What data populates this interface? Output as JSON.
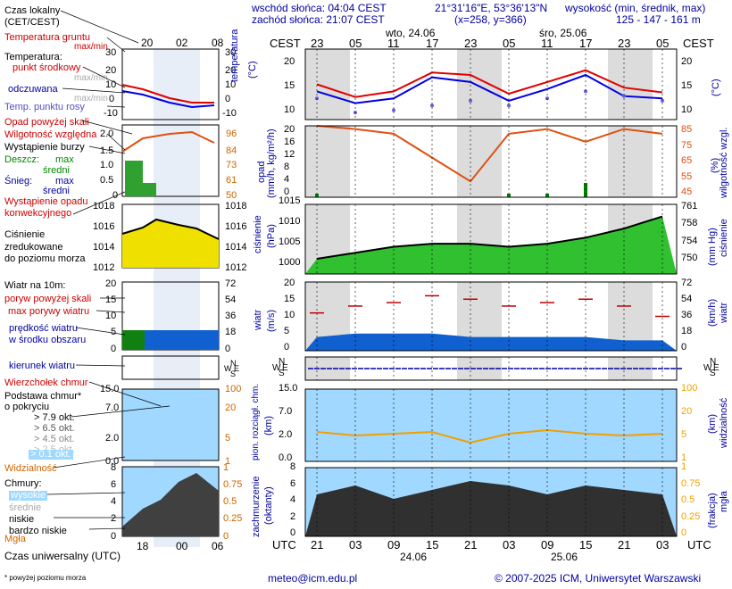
{
  "header": {
    "sunrise": "wschód słońca: 04:04 CEST",
    "sunset": "zachód słońca: 21:07 CEST",
    "coords": "21°31'16\"E, 53°36'13\"N",
    "grid": "(x=258, y=366)",
    "elev_title": "wysokość (min, średnik, max)",
    "elev_values": "125 - 147 - 161 m"
  },
  "time": {
    "cest_label": "CEST",
    "utc_label": "UTC",
    "top_hours": [
      "23",
      "05",
      "11",
      "17",
      "23",
      "05",
      "11",
      "17",
      "23",
      "05"
    ],
    "bottom_hours": [
      "21",
      "03",
      "09",
      "15",
      "21",
      "03",
      "09",
      "15",
      "21",
      "03"
    ],
    "dates_top": [
      "wto, 24.06",
      "śro, 25.06"
    ],
    "dates_bottom": [
      "24.06",
      "25.06"
    ],
    "legend_top_hours": [
      "20",
      "02",
      "08"
    ],
    "legend_bottom_hours": [
      "18",
      "00",
      "06"
    ]
  },
  "legend": {
    "czas_lokalny": "Czas lokalny",
    "czas_lokalny2": "(CET/CEST)",
    "temp_gruntu": "Temperatura gruntu",
    "max_min": "max/min",
    "temperatura": "Temperatura:",
    "punkt_srodkowy": "punkt środkowy",
    "max_min2": "max/min",
    "odczuwana": "odczuwana",
    "max_min3": "max/min",
    "punkt_rosy": "Temp. punktu rosy",
    "opad_powyzej": "Opad powyżej skali",
    "wilgotnosc": "Wilgotność względna",
    "burza": "Wystąpienie burzy",
    "deszcz": "Deszcz:",
    "max": "max",
    "sredni": "średni",
    "snieg": "Śnieg:",
    "wystapienie_opadu": "Wystąpienie opadu",
    "konwekcyjnego": "konwekcyjnego",
    "cisnienie": "Ciśnienie",
    "zredukowane": "zredukowane",
    "do_poziomu": "do poziomu morza",
    "wiatr10": "Wiatr na 10m:",
    "poryw_powyzej": "poryw powyżej skali",
    "max_porywy": "max porywy wiatru",
    "predkosc": "prędkość wiatru",
    "w_srodku": "w środku obszaru",
    "kierunek": "kierunek wiatru",
    "wierzcholek": "Wierzchołek chmur",
    "podstawa": "Podstawa chmur*",
    "o_pokryciu": "o pokryciu",
    "okt79": "> 7.9 okt.",
    "okt65": "> 6.5 okt.",
    "okt45": "> 4.5 okt.",
    "okt25": "> 2.5 okt.",
    "okt01": "> 0.1 okt.",
    "widzialnosc": "Widzialność",
    "chmury": "Chmury:",
    "wysokie": "wysokie",
    "srednie": "średnie",
    "niskie": "niskie",
    "bardzo_niskie": "bardzo niskie",
    "mgla": "Mgła",
    "czas_uniw": "Czas uniwersalny (UTC)",
    "footnote": "* powyżej poziomu morza"
  },
  "axes": {
    "temperature": {
      "label": "temperatura",
      "unit": "(°C)",
      "ticks": [
        "20",
        "15",
        "10"
      ]
    },
    "precip": {
      "label": "opad",
      "unit": "(mm/h, kg/m²/h)",
      "ticks": [
        "20",
        "16",
        "12",
        "8",
        "4",
        "0"
      ],
      "right_label": "wilgotność wzgl.",
      "right_unit": "(%)",
      "right_ticks": [
        "85",
        "75",
        "65",
        "55",
        "45"
      ]
    },
    "pressure": {
      "label": "ciśnienie",
      "unit": "(hPa)",
      "ticks": [
        "1015",
        "1010",
        "1005",
        "1000"
      ],
      "right_label": "ciśnienie",
      "right_unit": "(mm Hg)",
      "right_ticks": [
        "761",
        "758",
        "754",
        "750"
      ]
    },
    "wind": {
      "label": "wiatr",
      "unit": "(m/s)",
      "ticks": [
        "20",
        "15",
        "10",
        "5",
        "0"
      ],
      "right_label": "wiatr",
      "right_unit": "(km/h)",
      "right_ticks": [
        "72",
        "54",
        "36",
        "18",
        "0"
      ]
    },
    "dir": {
      "labels": [
        "N",
        "W",
        "E",
        "S"
      ]
    },
    "cloud": {
      "label": "pion. rozciągł. chm.",
      "unit": "(km)",
      "ticks": [
        "15.0",
        "7.0",
        "2.0",
        "0.0"
      ],
      "right_label": "widzialność",
      "right_unit": "(km)",
      "right_ticks": [
        "100",
        "20",
        "5",
        "1"
      ]
    },
    "cover": {
      "label": "zachmurzenie",
      "unit": "(oktanty)",
      "ticks": [
        "8",
        "6",
        "4",
        "2",
        "0"
      ],
      "right_label": "mgła",
      "right_unit": "(frakcja)",
      "right_ticks": [
        "1",
        "0.75",
        "0.5",
        "0.25",
        "0"
      ]
    }
  },
  "legend_axes": {
    "temp_left": [
      "30",
      "20",
      "10",
      "0",
      "-10"
    ],
    "temp_right": [
      "30",
      "20",
      "10",
      "0",
      "-10"
    ],
    "prec_left": [
      "2.0",
      "1.5",
      "1.0",
      "0.5",
      "0"
    ],
    "prec_right": [
      "96",
      "84",
      "73",
      "61",
      "50"
    ],
    "pres_left": [
      "1018",
      "1016",
      "1014",
      "1012"
    ],
    "pres_right": [
      "1018",
      "1016",
      "1014",
      "1012"
    ],
    "wind_left": [
      "20",
      "15",
      "10",
      "5",
      "0"
    ],
    "wind_right": [
      "72",
      "54",
      "36",
      "18",
      "0"
    ],
    "cloud_left": [
      "15.0",
      "7.0",
      "2.0",
      "0.0"
    ],
    "cloud_right": [
      "100",
      "20",
      "5",
      "1"
    ],
    "cover_left": [
      "8",
      "6",
      "4",
      "2",
      "0"
    ],
    "cover_right": [
      "1",
      "0.75",
      "0.5",
      "0.25",
      "0"
    ],
    "dir_labels": [
      "N",
      "W",
      "E",
      "S"
    ]
  },
  "footer": {
    "email": "meteo@icm.edu.pl",
    "copyright": "© 2007-2025 ICM, Uniwersytet Warszawski"
  },
  "colors": {
    "temp": "#e00000",
    "feel": "#0000e0",
    "dew": "#6060e0",
    "rh": "#e05010",
    "rain": "#008000",
    "pressure_fill": "#30c030",
    "gust": "#c00000",
    "wind_fill": "#1060d0",
    "sky": "#a0d8ff",
    "night": "#dcdcdc",
    "vis": "#f0a000"
  },
  "chart_data": [
    {
      "type": "line",
      "title": "temperatura",
      "x": [
        "21",
        "03",
        "09",
        "15",
        "21",
        "03",
        "09",
        "15",
        "21",
        "03"
      ],
      "series": [
        {
          "name": "punkt środkowy",
          "values": [
            15.5,
            12.8,
            14.0,
            18.0,
            17.5,
            13.5,
            16.0,
            18.5,
            14.8,
            13.8
          ]
        },
        {
          "name": "odczuwana",
          "values": [
            14.0,
            11.5,
            12.5,
            17.0,
            16.0,
            12.0,
            14.5,
            17.5,
            13.0,
            12.5
          ]
        },
        {
          "name": "Temp. punktu rosy",
          "values": [
            12.5,
            9.5,
            10.0,
            11.0,
            12.0,
            11.0,
            12.5,
            14.0,
            13.0,
            12.0
          ]
        }
      ],
      "ylim": [
        8,
        23
      ]
    },
    {
      "type": "line",
      "title": "opad / wilgotność wzgl.",
      "x": [
        "21",
        "03",
        "09",
        "15",
        "21",
        "03",
        "09",
        "15",
        "21",
        "03"
      ],
      "series": [
        {
          "name": "wilgotność wzgl.",
          "values": [
            90,
            88,
            85,
            70,
            55,
            85,
            88,
            80,
            88,
            85
          ]
        },
        {
          "name": "opad",
          "values": [
            1,
            0,
            0,
            0,
            0,
            1,
            1,
            4,
            0,
            0
          ]
        }
      ],
      "ylim": [
        45,
        90
      ]
    },
    {
      "type": "area",
      "title": "ciśnienie",
      "x": [
        "21",
        "03",
        "09",
        "15",
        "21",
        "03",
        "09",
        "15",
        "21",
        "03"
      ],
      "values": [
        1000,
        1002,
        1004,
        1005,
        1005,
        1004,
        1005,
        1007,
        1010,
        1014
      ],
      "ylim": [
        995,
        1018
      ]
    },
    {
      "type": "line",
      "title": "wiatr",
      "x": [
        "21",
        "03",
        "09",
        "15",
        "21",
        "03",
        "09",
        "15",
        "21",
        "03"
      ],
      "series": [
        {
          "name": "max porywy wiatru",
          "values": [
            11,
            13,
            14,
            16,
            15,
            13,
            14,
            15,
            13,
            10
          ]
        },
        {
          "name": "prędkość wiatru",
          "values": [
            4,
            5,
            5,
            5,
            4,
            4,
            4,
            4,
            3,
            3
          ]
        }
      ],
      "ylim": [
        0,
        20
      ]
    }
  ]
}
